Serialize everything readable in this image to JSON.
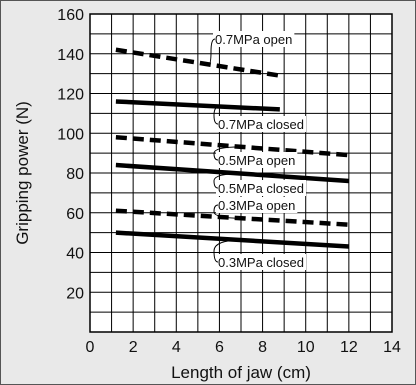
{
  "chart_data": {
    "type": "line",
    "title": "",
    "xlabel": "Length of jaw (cm)",
    "ylabel": "Gripping power (N)",
    "xlim": [
      0,
      14
    ],
    "ylim": [
      0,
      160
    ],
    "x_ticks": [
      0,
      2,
      4,
      6,
      8,
      10,
      12,
      14
    ],
    "y_ticks": [
      20,
      40,
      60,
      80,
      100,
      120,
      140,
      160
    ],
    "grid": true,
    "background": "#e9e9e9",
    "plot_background": "#ffffff",
    "series": [
      {
        "name": "0.7MPa open",
        "style": "dashed",
        "x": [
          1.2,
          8.8
        ],
        "y": [
          142,
          129
        ]
      },
      {
        "name": "0.7MPa closed",
        "style": "solid",
        "x": [
          1.2,
          8.8
        ],
        "y": [
          116,
          112
        ]
      },
      {
        "name": "0.5MPa open",
        "style": "dashed",
        "x": [
          1.2,
          12
        ],
        "y": [
          98,
          89
        ]
      },
      {
        "name": "0.5MPa closed",
        "style": "solid",
        "x": [
          1.2,
          12
        ],
        "y": [
          84,
          76
        ]
      },
      {
        "name": "0.3MPa open",
        "style": "dashed",
        "x": [
          1.2,
          12
        ],
        "y": [
          61,
          54
        ]
      },
      {
        "name": "0.3MPa closed",
        "style": "solid",
        "x": [
          1.2,
          12
        ],
        "y": [
          50,
          43
        ]
      }
    ],
    "annotations": [
      {
        "text": "0.7MPa open",
        "series": 0
      },
      {
        "text": "0.7MPa closed",
        "series": 1
      },
      {
        "text": "0.5MPa open",
        "series": 2
      },
      {
        "text": "0.5MPa closed",
        "series": 3
      },
      {
        "text": "0.3MPa open",
        "series": 4
      },
      {
        "text": "0.3MPa closed",
        "series": 5
      }
    ]
  }
}
